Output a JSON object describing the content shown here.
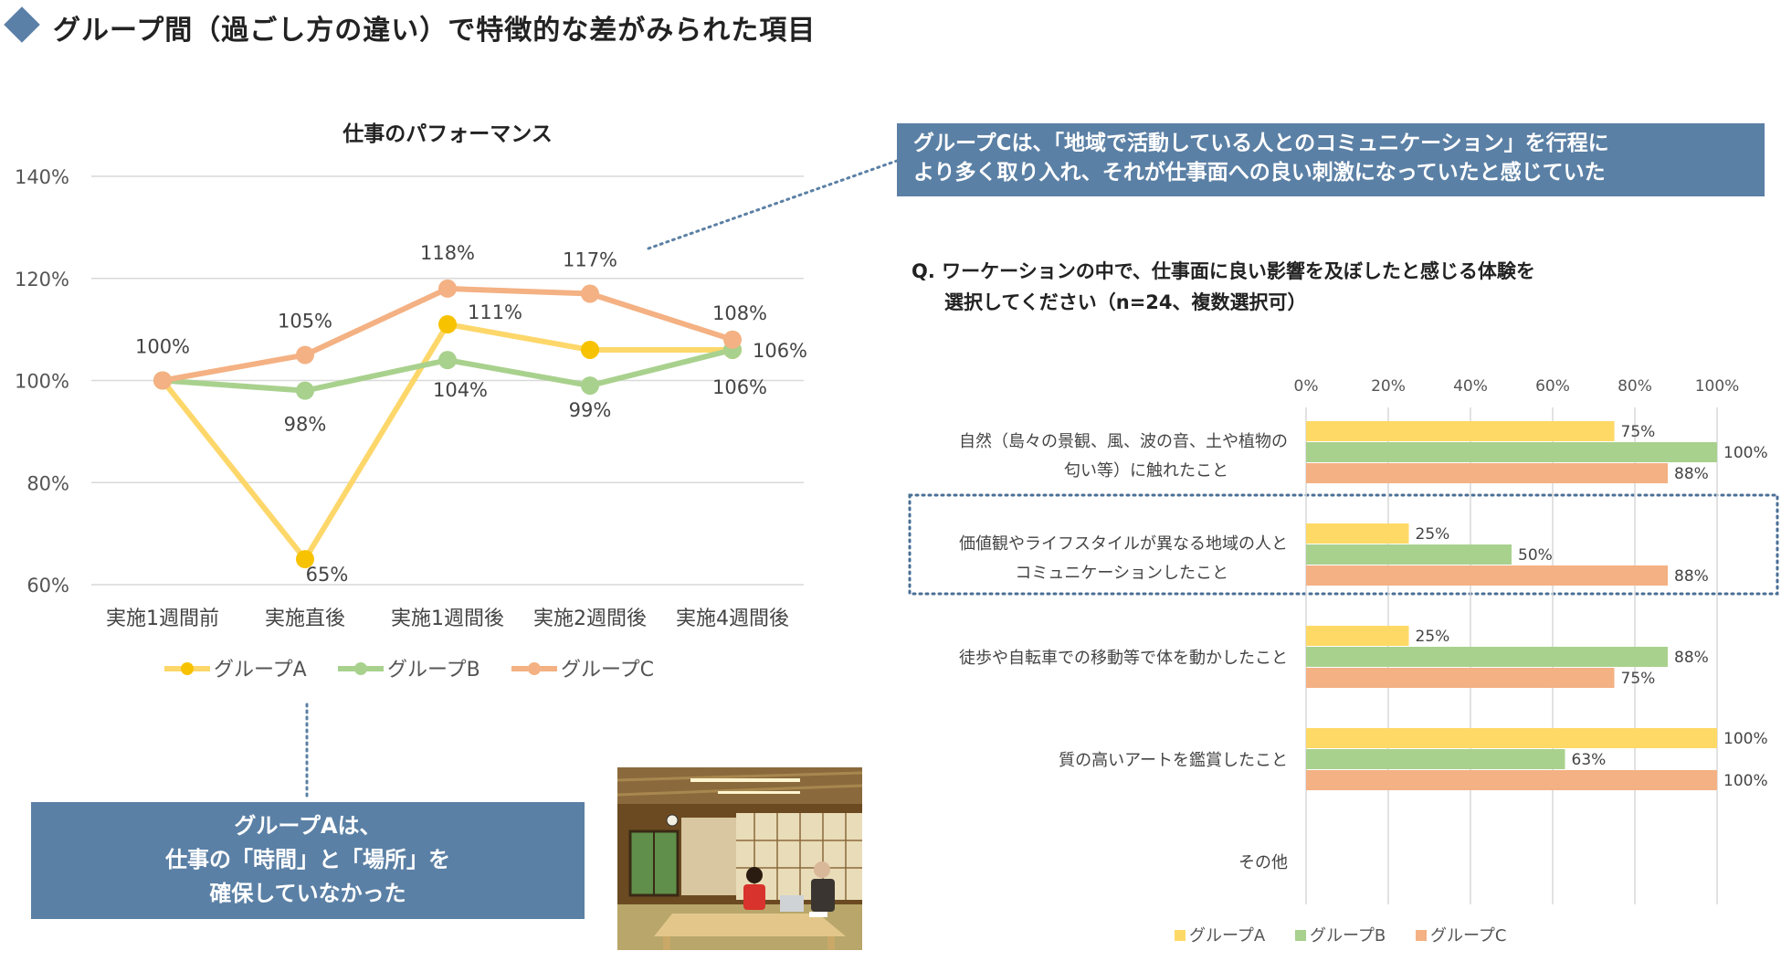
{
  "page": {
    "title": "グループ間（過ごし方の違い）で特徴的な差がみられた項目",
    "accent_color": "#5b80a8"
  },
  "callouts": {
    "group_c_line1": "グループCは、「地域で活動している人とのコミュニケーション」を行程に",
    "group_c_line2": "より多く取り入れ、それが仕事面への良い刺激になっていたと感じていた",
    "group_a_line1": "グループAは、",
    "group_a_line2": "仕事の「時間」と「場所」を",
    "group_a_line3": "確保していなかった"
  },
  "question": {
    "line1": "Q. ワーケーションの中で、仕事面に良い影響を及ぼしたと感じる体験を",
    "line2": "選択してください（n=24、複数選択可）"
  },
  "chart_data": [
    {
      "type": "line",
      "title": "仕事のパフォーマンス",
      "categories": [
        "実施1週間前",
        "実施直後",
        "実施1週間後",
        "実施2週間後",
        "実施4週間後"
      ],
      "y_ticks": [
        "60%",
        "80%",
        "100%",
        "120%",
        "140%"
      ],
      "ylim": [
        60,
        140
      ],
      "grid": true,
      "legend_position": "bottom",
      "series": [
        {
          "name": "グループA",
          "color": "#fdd76a",
          "marker_color": "#f7c200",
          "values": [
            100,
            65,
            111,
            106,
            106
          ],
          "labels": [
            "",
            "65%",
            "111%",
            "",
            ""
          ]
        },
        {
          "name": "グループB",
          "color": "#a9d18e",
          "marker_color": "#a9d18e",
          "values": [
            100,
            98,
            104,
            99,
            106
          ],
          "labels": [
            "",
            "98%",
            "104%",
            "99%",
            "106%"
          ]
        },
        {
          "name": "グループC",
          "color": "#f4b183",
          "marker_color": "#f4b183",
          "values": [
            100,
            105,
            118,
            117,
            108
          ],
          "labels": [
            "100%",
            "105%",
            "118%",
            "117%",
            "108%"
          ]
        }
      ],
      "extra_labels": [
        "106%",
        "106%"
      ]
    },
    {
      "type": "bar",
      "orientation": "horizontal",
      "x_ticks": [
        "0%",
        "20%",
        "40%",
        "60%",
        "80%",
        "100%"
      ],
      "xlim": [
        0,
        100
      ],
      "grid": true,
      "legend_position": "bottom",
      "categories": [
        {
          "line1": "自然（島々の景観、風、波の音、土や植物の",
          "line2": "匂い等）に触れたこと"
        },
        {
          "line1": "価値観やライフスタイルが異なる地域の人と",
          "line2": "コミュニケーションしたこと"
        },
        {
          "line1": "徒歩や自転車での移動等で体を動かしたこと",
          "line2": ""
        },
        {
          "line1": "質の高いアートを鑑賞したこと",
          "line2": ""
        },
        {
          "line1": "その他",
          "line2": ""
        }
      ],
      "highlighted_category_index": 1,
      "series": [
        {
          "name": "グループA",
          "color": "#ffd966",
          "values": [
            75,
            25,
            25,
            100,
            null
          ],
          "labels": [
            "75%",
            "25%",
            "25%",
            "100%",
            ""
          ]
        },
        {
          "name": "グループB",
          "color": "#a9d18e",
          "values": [
            100,
            50,
            88,
            63,
            null
          ],
          "labels": [
            "100%",
            "50%",
            "88%",
            "63%",
            ""
          ]
        },
        {
          "name": "グループC",
          "color": "#f4b183",
          "values": [
            88,
            88,
            75,
            100,
            null
          ],
          "labels": [
            "88%",
            "88%",
            "75%",
            "100%",
            ""
          ]
        }
      ]
    }
  ]
}
